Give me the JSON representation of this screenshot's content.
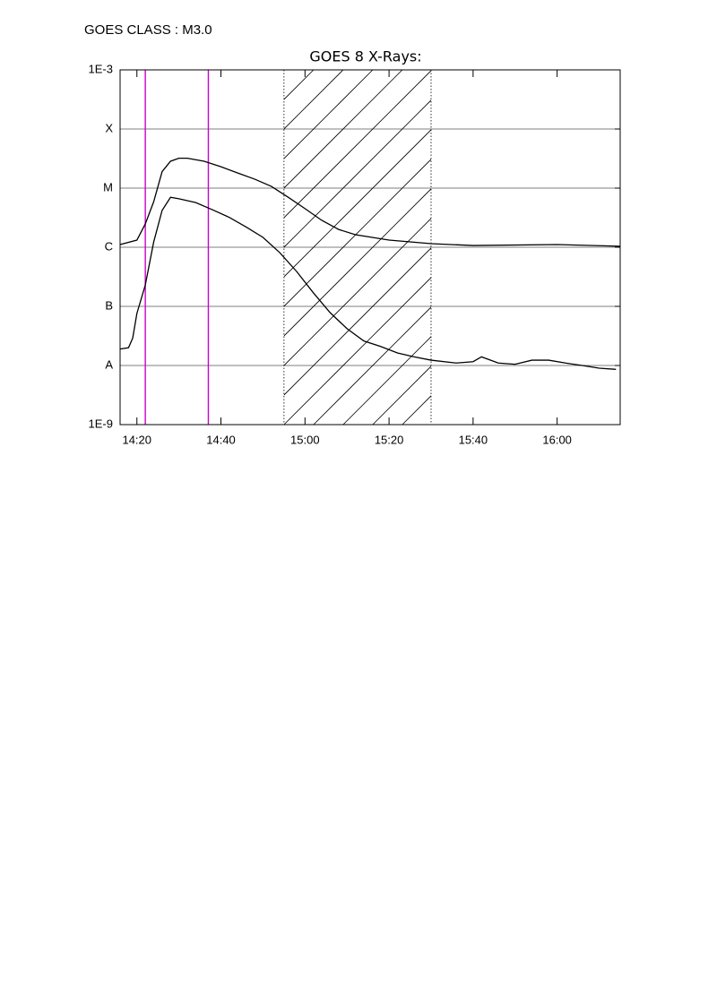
{
  "header": {
    "text": "GOES CLASS : M3.0"
  },
  "chart_data": {
    "type": "line",
    "title": "GOES 8 X-Rays:",
    "log_y": true,
    "grid": true,
    "xlim": [
      "14:16",
      "16:15"
    ],
    "xticks": [
      "14:20",
      "14:40",
      "15:00",
      "15:20",
      "15:40",
      "16:00"
    ],
    "ylim": [
      1e-09,
      0.001
    ],
    "yticks": [
      {
        "value": 1e-09,
        "label": "1E-9"
      },
      {
        "value": 1e-08,
        "label": "A"
      },
      {
        "value": 1e-07,
        "label": "B"
      },
      {
        "value": 1e-06,
        "label": "C"
      },
      {
        "value": 1e-05,
        "label": "M"
      },
      {
        "value": 0.0001,
        "label": "X"
      },
      {
        "value": 0.001,
        "label": "1E-3"
      }
    ],
    "markers": {
      "color": "#cc00cc",
      "x": [
        "14:22",
        "14:37"
      ]
    },
    "shaded": [
      "14:55",
      "15:30"
    ],
    "series": [
      {
        "color": "#000000",
        "x": [
          "14:16",
          "14:20",
          "14:22",
          "14:24",
          "14:26",
          "14:28",
          "14:30",
          "14:32",
          "14:36",
          "14:40",
          "14:44",
          "14:48",
          "14:52",
          "14:56",
          "15:00",
          "15:04",
          "15:08",
          "15:12",
          "15:16",
          "15:20",
          "15:30",
          "15:40",
          "16:00",
          "16:15"
        ],
        "values": [
          1.11e-06,
          1.32e-06,
          2.48e-06,
          5.9e-06,
          1.9e-05,
          2.85e-05,
          3.2e-05,
          3.2e-05,
          2.85e-05,
          2.3e-05,
          1.8e-05,
          1.42e-05,
          1.07e-05,
          7e-06,
          4.5e-06,
          2.85e-06,
          2e-06,
          1.63e-06,
          1.47e-06,
          1.32e-06,
          1.15e-06,
          1.07e-06,
          1.11e-06,
          1.04e-06
        ]
      },
      {
        "color": "#000000",
        "x": [
          "14:16",
          "14:18",
          "14:19",
          "14:20",
          "14:22",
          "14:24",
          "14:26",
          "14:28",
          "14:30",
          "14:34",
          "14:38",
          "14:42",
          "14:46",
          "14:50",
          "14:54",
          "14:58",
          "15:02",
          "15:06",
          "15:10",
          "15:14",
          "15:18",
          "15:22",
          "15:26",
          "15:30",
          "15:36",
          "15:40",
          "15:42",
          "15:46",
          "15:50",
          "15:54",
          "15:58",
          "16:02",
          "16:06",
          "16:10",
          "16:14"
        ],
        "values": [
          1.9e-08,
          2e-08,
          2.9e-08,
          7.6e-08,
          2.3e-07,
          1.23e-06,
          4.2e-06,
          7e-06,
          6.6e-06,
          5.7e-06,
          4.3e-06,
          3.2e-06,
          2.2e-06,
          1.47e-06,
          8.1e-07,
          3.9e-07,
          1.69e-07,
          7.8e-08,
          4.2e-08,
          2.6e-08,
          2.1e-08,
          1.63e-08,
          1.4e-08,
          1.23e-08,
          1.1e-08,
          1.16e-08,
          1.4e-08,
          1.1e-08,
          1.05e-08,
          1.23e-08,
          1.23e-08,
          1.1e-08,
          1e-08,
          9e-09,
          8.6e-09
        ]
      }
    ]
  }
}
